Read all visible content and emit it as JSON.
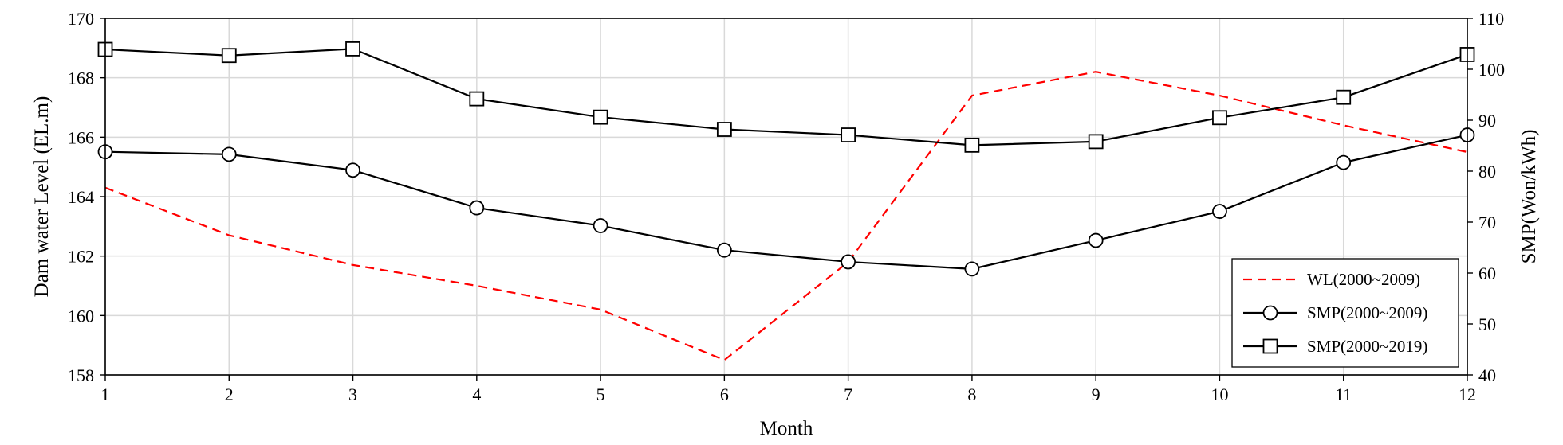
{
  "chart_data": {
    "type": "line",
    "title": "",
    "xlabel": "Month",
    "ylabel": "Dam water Level (EL.m)",
    "y2label": "SMP(Won/kWh)",
    "x": [
      1,
      2,
      3,
      4,
      5,
      6,
      7,
      8,
      9,
      10,
      11,
      12
    ],
    "xlim": [
      1,
      12
    ],
    "ylim": [
      158,
      170
    ],
    "y2lim": [
      40,
      110
    ],
    "yticks": [
      158,
      160,
      162,
      164,
      166,
      168,
      170
    ],
    "y2ticks": [
      40,
      50,
      60,
      70,
      80,
      90,
      100,
      110
    ],
    "grid": true,
    "legend_position": "bottom-right",
    "series": [
      {
        "name": "WL(2000~2009)",
        "axis": "left",
        "style": "dashed",
        "marker": "none",
        "color": "#ff0000",
        "values": [
          164.3,
          162.7,
          161.7,
          161.0,
          160.2,
          158.5,
          161.8,
          167.4,
          168.2,
          167.4,
          166.4,
          165.5
        ]
      },
      {
        "name": "SMP(2000~2009)",
        "axis": "right",
        "style": "solid",
        "marker": "circle",
        "color": "#000000",
        "values": [
          83.8,
          83.3,
          80.2,
          72.8,
          69.3,
          64.5,
          62.2,
          60.8,
          66.4,
          72.1,
          81.7,
          87.1
        ]
      },
      {
        "name": "SMP(2000~2019)",
        "axis": "right",
        "style": "solid",
        "marker": "square",
        "color": "#000000",
        "values": [
          103.9,
          102.7,
          104.0,
          94.2,
          90.6,
          88.2,
          87.1,
          85.1,
          85.8,
          90.5,
          94.5,
          102.9
        ]
      }
    ]
  }
}
